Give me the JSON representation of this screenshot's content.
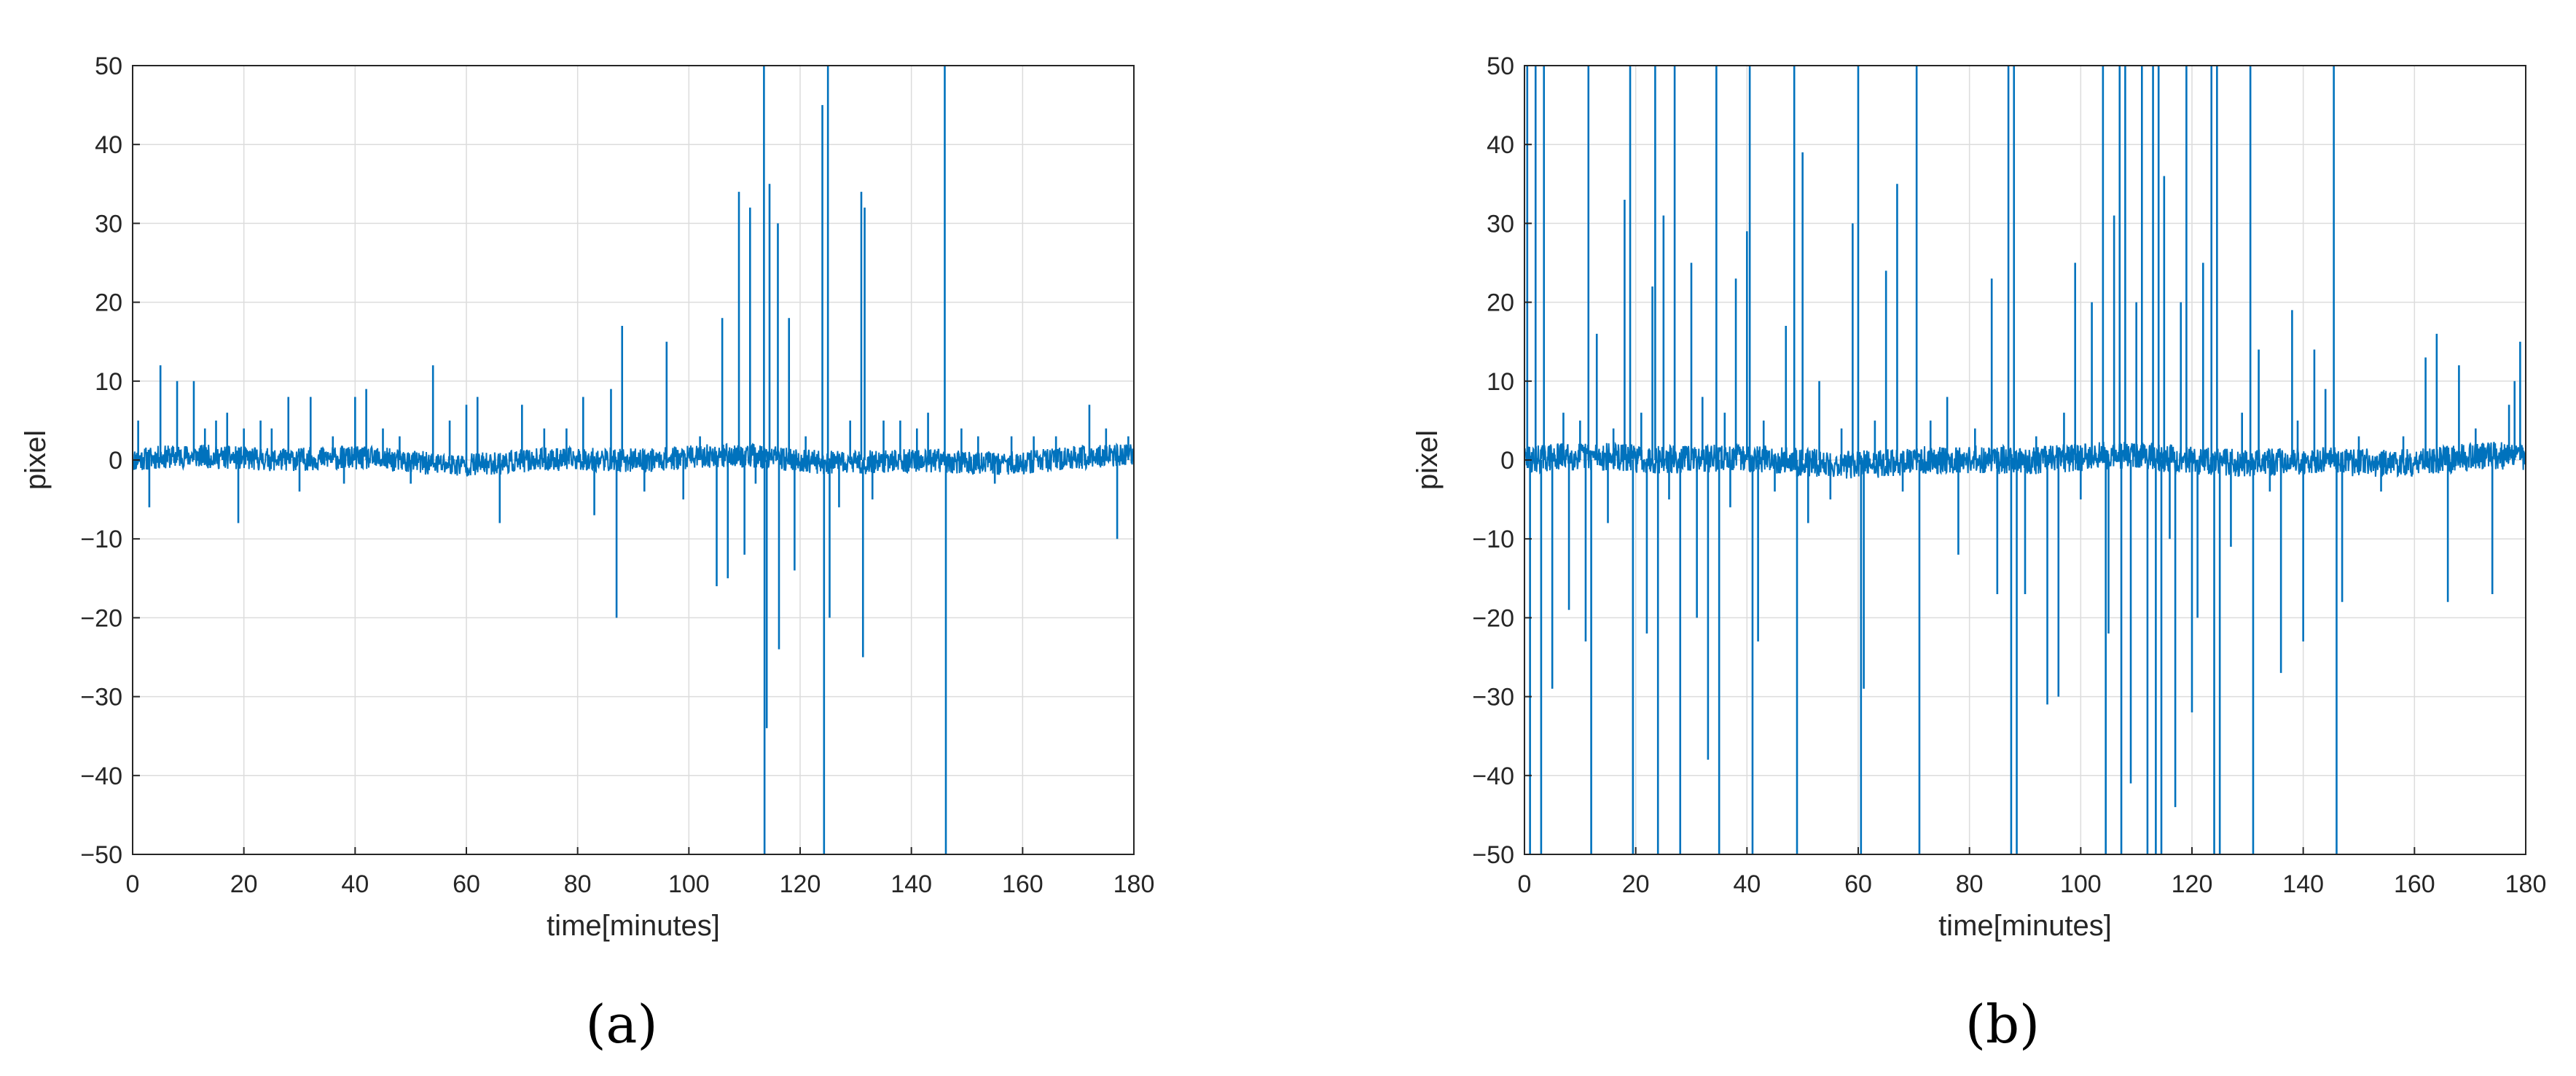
{
  "chart_data": [
    {
      "type": "line",
      "panel_label": "(a)",
      "xlabel": "time[minutes]",
      "ylabel": "pixel",
      "xlim": [
        0,
        180
      ],
      "ylim": [
        -50,
        50
      ],
      "xticks": [
        "0",
        "20",
        "40",
        "60",
        "80",
        "100",
        "120",
        "140",
        "160",
        "180"
      ],
      "yticks": [
        "50",
        "40",
        "30",
        "20",
        "10",
        "0",
        "−10",
        "−20",
        "−30",
        "−40",
        "−50"
      ],
      "grid": true,
      "legend": "none",
      "line_color": "#0072BD",
      "baseline_noise_amplitude": 1.5,
      "series": [
        {
          "spikes": [
            {
              "x": 1,
              "y": 5
            },
            {
              "x": 3,
              "y": -6
            },
            {
              "x": 5,
              "y": 12
            },
            {
              "x": 8,
              "y": 10
            },
            {
              "x": 11,
              "y": 10
            },
            {
              "x": 13,
              "y": 4
            },
            {
              "x": 15,
              "y": 5
            },
            {
              "x": 17,
              "y": 6
            },
            {
              "x": 19,
              "y": -8
            },
            {
              "x": 20,
              "y": 4
            },
            {
              "x": 23,
              "y": 5
            },
            {
              "x": 25,
              "y": 4
            },
            {
              "x": 28,
              "y": 8
            },
            {
              "x": 30,
              "y": -4
            },
            {
              "x": 32,
              "y": 8
            },
            {
              "x": 36,
              "y": 3
            },
            {
              "x": 38,
              "y": -3
            },
            {
              "x": 40,
              "y": 8
            },
            {
              "x": 42,
              "y": 9
            },
            {
              "x": 45,
              "y": 4
            },
            {
              "x": 48,
              "y": 3
            },
            {
              "x": 50,
              "y": -3
            },
            {
              "x": 54,
              "y": 12
            },
            {
              "x": 57,
              "y": 5
            },
            {
              "x": 60,
              "y": 7
            },
            {
              "x": 62,
              "y": 8
            },
            {
              "x": 66,
              "y": -8
            },
            {
              "x": 70,
              "y": 7
            },
            {
              "x": 74,
              "y": 4
            },
            {
              "x": 78,
              "y": 4
            },
            {
              "x": 81,
              "y": 8
            },
            {
              "x": 83,
              "y": -7
            },
            {
              "x": 86,
              "y": 9
            },
            {
              "x": 87,
              "y": -20
            },
            {
              "x": 88,
              "y": 17
            },
            {
              "x": 92,
              "y": -4
            },
            {
              "x": 96,
              "y": 15
            },
            {
              "x": 99,
              "y": -5
            },
            {
              "x": 102,
              "y": 3
            },
            {
              "x": 105,
              "y": -16
            },
            {
              "x": 106,
              "y": 18
            },
            {
              "x": 107,
              "y": -15
            },
            {
              "x": 109,
              "y": 34
            },
            {
              "x": 110,
              "y": -12
            },
            {
              "x": 111,
              "y": 32
            },
            {
              "x": 112,
              "y": -3
            },
            {
              "x": 113.5,
              "y": 50
            },
            {
              "x": 113.6,
              "y": -50
            },
            {
              "x": 114,
              "y": -34
            },
            {
              "x": 114.5,
              "y": 35
            },
            {
              "x": 116,
              "y": 30
            },
            {
              "x": 116.2,
              "y": -24
            },
            {
              "x": 118,
              "y": 18
            },
            {
              "x": 119,
              "y": -14
            },
            {
              "x": 121,
              "y": 3
            },
            {
              "x": 124,
              "y": 45
            },
            {
              "x": 124.3,
              "y": -50
            },
            {
              "x": 125,
              "y": 50
            },
            {
              "x": 125.3,
              "y": -20
            },
            {
              "x": 127,
              "y": -6
            },
            {
              "x": 129,
              "y": 5
            },
            {
              "x": 131,
              "y": 34
            },
            {
              "x": 131.3,
              "y": -25
            },
            {
              "x": 131.6,
              "y": 32
            },
            {
              "x": 133,
              "y": -5
            },
            {
              "x": 135,
              "y": 5
            },
            {
              "x": 138,
              "y": 5
            },
            {
              "x": 141,
              "y": 4
            },
            {
              "x": 143,
              "y": 6
            },
            {
              "x": 146,
              "y": 50
            },
            {
              "x": 146.2,
              "y": -50
            },
            {
              "x": 149,
              "y": 4
            },
            {
              "x": 152,
              "y": 3
            },
            {
              "x": 155,
              "y": -3
            },
            {
              "x": 158,
              "y": 3
            },
            {
              "x": 162,
              "y": 3
            },
            {
              "x": 166,
              "y": 3
            },
            {
              "x": 172,
              "y": 7
            },
            {
              "x": 175,
              "y": 4
            },
            {
              "x": 177,
              "y": -10
            },
            {
              "x": 179,
              "y": 3
            }
          ]
        }
      ]
    },
    {
      "type": "line",
      "panel_label": "(b)",
      "xlabel": "time[minutes]",
      "ylabel": "pixel",
      "xlim": [
        0,
        180
      ],
      "ylim": [
        -50,
        50
      ],
      "xticks": [
        "0",
        "20",
        "40",
        "60",
        "80",
        "100",
        "120",
        "140",
        "160",
        "180"
      ],
      "yticks": [
        "50",
        "40",
        "30",
        "20",
        "10",
        "0",
        "−10",
        "−20",
        "−30",
        "−40",
        "−50"
      ],
      "grid": true,
      "legend": "none",
      "line_color": "#0072BD",
      "baseline_noise_amplitude": 1.8,
      "series": [
        {
          "spikes": [
            {
              "x": 0.5,
              "y": 50
            },
            {
              "x": 1,
              "y": -50
            },
            {
              "x": 2,
              "y": 50
            },
            {
              "x": 3,
              "y": -50
            },
            {
              "x": 3.5,
              "y": 50
            },
            {
              "x": 5,
              "y": -29
            },
            {
              "x": 7,
              "y": 6
            },
            {
              "x": 8,
              "y": -19
            },
            {
              "x": 10,
              "y": 5
            },
            {
              "x": 11,
              "y": -23
            },
            {
              "x": 11.5,
              "y": 50
            },
            {
              "x": 12,
              "y": -50
            },
            {
              "x": 13,
              "y": 16
            },
            {
              "x": 15,
              "y": -8
            },
            {
              "x": 16,
              "y": 4
            },
            {
              "x": 18,
              "y": 33
            },
            {
              "x": 19,
              "y": 50
            },
            {
              "x": 19.5,
              "y": -50
            },
            {
              "x": 21,
              "y": 6
            },
            {
              "x": 22,
              "y": -22
            },
            {
              "x": 23,
              "y": 22
            },
            {
              "x": 23.5,
              "y": 50
            },
            {
              "x": 24,
              "y": -50
            },
            {
              "x": 25,
              "y": 31
            },
            {
              "x": 26,
              "y": -5
            },
            {
              "x": 27,
              "y": 50
            },
            {
              "x": 28,
              "y": -50
            },
            {
              "x": 30,
              "y": 25
            },
            {
              "x": 31,
              "y": -20
            },
            {
              "x": 32,
              "y": 8
            },
            {
              "x": 33,
              "y": -38
            },
            {
              "x": 34.5,
              "y": 50
            },
            {
              "x": 35,
              "y": -50
            },
            {
              "x": 36,
              "y": 6
            },
            {
              "x": 37,
              "y": -6
            },
            {
              "x": 38,
              "y": 23
            },
            {
              "x": 40,
              "y": 29
            },
            {
              "x": 40.5,
              "y": 50
            },
            {
              "x": 41,
              "y": -50
            },
            {
              "x": 42,
              "y": -23
            },
            {
              "x": 43,
              "y": 5
            },
            {
              "x": 45,
              "y": -4
            },
            {
              "x": 47,
              "y": 17
            },
            {
              "x": 48.5,
              "y": 50
            },
            {
              "x": 49,
              "y": -50
            },
            {
              "x": 50,
              "y": 39
            },
            {
              "x": 51,
              "y": -8
            },
            {
              "x": 53,
              "y": 10
            },
            {
              "x": 55,
              "y": -5
            },
            {
              "x": 57,
              "y": 4
            },
            {
              "x": 59,
              "y": 30
            },
            {
              "x": 60,
              "y": 50
            },
            {
              "x": 60.5,
              "y": -50
            },
            {
              "x": 61,
              "y": -29
            },
            {
              "x": 63,
              "y": 5
            },
            {
              "x": 65,
              "y": 24
            },
            {
              "x": 67,
              "y": 35
            },
            {
              "x": 68,
              "y": -4
            },
            {
              "x": 70.5,
              "y": 50
            },
            {
              "x": 71,
              "y": -50
            },
            {
              "x": 73,
              "y": 5
            },
            {
              "x": 76,
              "y": 8
            },
            {
              "x": 78,
              "y": -12
            },
            {
              "x": 81,
              "y": 4
            },
            {
              "x": 84,
              "y": 23
            },
            {
              "x": 85,
              "y": -17
            },
            {
              "x": 87,
              "y": 50
            },
            {
              "x": 87.5,
              "y": -50
            },
            {
              "x": 88,
              "y": 50
            },
            {
              "x": 88.5,
              "y": -50
            },
            {
              "x": 90,
              "y": -17
            },
            {
              "x": 92,
              "y": 3
            },
            {
              "x": 94,
              "y": -31
            },
            {
              "x": 96,
              "y": -30
            },
            {
              "x": 97,
              "y": 6
            },
            {
              "x": 99,
              "y": 25
            },
            {
              "x": 100,
              "y": -5
            },
            {
              "x": 102,
              "y": 20
            },
            {
              "x": 104,
              "y": 50
            },
            {
              "x": 104.5,
              "y": -50
            },
            {
              "x": 105,
              "y": -22
            },
            {
              "x": 106,
              "y": 31
            },
            {
              "x": 107,
              "y": 50
            },
            {
              "x": 107.3,
              "y": -50
            },
            {
              "x": 108,
              "y": 50
            },
            {
              "x": 109,
              "y": -41
            },
            {
              "x": 110,
              "y": 20
            },
            {
              "x": 111,
              "y": 50
            },
            {
              "x": 112,
              "y": -50
            },
            {
              "x": 113,
              "y": 50
            },
            {
              "x": 113.5,
              "y": -50
            },
            {
              "x": 114,
              "y": 50
            },
            {
              "x": 114.5,
              "y": -50
            },
            {
              "x": 115,
              "y": 36
            },
            {
              "x": 116,
              "y": -10
            },
            {
              "x": 117,
              "y": -44
            },
            {
              "x": 118,
              "y": 20
            },
            {
              "x": 119,
              "y": 50
            },
            {
              "x": 120,
              "y": -32
            },
            {
              "x": 121,
              "y": -20
            },
            {
              "x": 122,
              "y": 25
            },
            {
              "x": 123.5,
              "y": 50
            },
            {
              "x": 124,
              "y": -50
            },
            {
              "x": 124.5,
              "y": 50
            },
            {
              "x": 125,
              "y": -50
            },
            {
              "x": 127,
              "y": -11
            },
            {
              "x": 129,
              "y": 6
            },
            {
              "x": 130.5,
              "y": 50
            },
            {
              "x": 131,
              "y": -50
            },
            {
              "x": 132,
              "y": 14
            },
            {
              "x": 134,
              "y": -4
            },
            {
              "x": 136,
              "y": -27
            },
            {
              "x": 138,
              "y": 19
            },
            {
              "x": 139,
              "y": 5
            },
            {
              "x": 140,
              "y": -23
            },
            {
              "x": 142,
              "y": 14
            },
            {
              "x": 144,
              "y": 9
            },
            {
              "x": 145.5,
              "y": 50
            },
            {
              "x": 146,
              "y": -50
            },
            {
              "x": 147,
              "y": -18
            },
            {
              "x": 150,
              "y": 3
            },
            {
              "x": 154,
              "y": -4
            },
            {
              "x": 158,
              "y": 3
            },
            {
              "x": 162,
              "y": 13
            },
            {
              "x": 164,
              "y": 16
            },
            {
              "x": 166,
              "y": -18
            },
            {
              "x": 168,
              "y": 12
            },
            {
              "x": 171,
              "y": 4
            },
            {
              "x": 174,
              "y": -17
            },
            {
              "x": 177,
              "y": 7
            },
            {
              "x": 178,
              "y": 10
            },
            {
              "x": 179,
              "y": 15
            }
          ]
        }
      ]
    }
  ]
}
